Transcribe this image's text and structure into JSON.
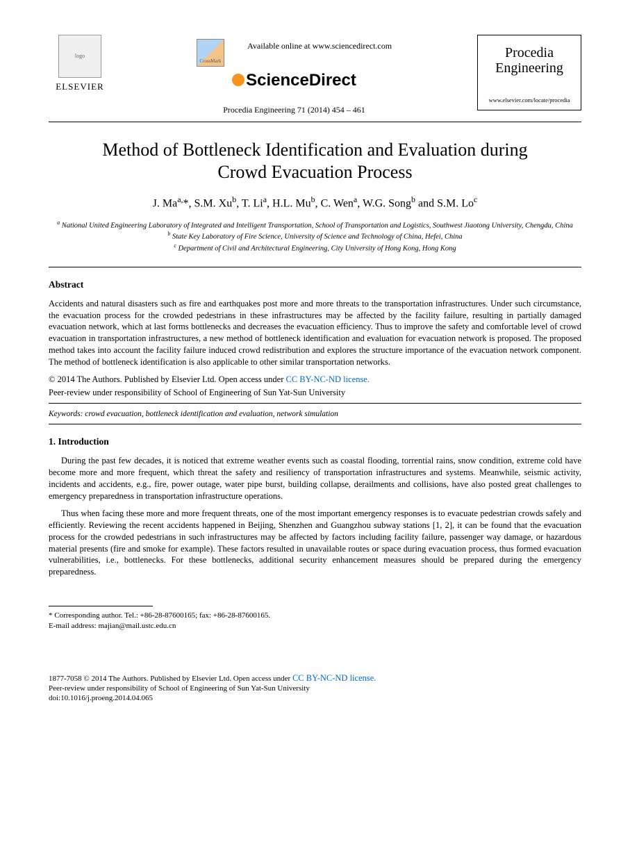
{
  "header": {
    "publisher_label": "ELSEVIER",
    "crossmark_label": "CrossMark",
    "available_line": "Available online at www.sciencedirect.com",
    "sd_brand": "ScienceDirect",
    "journal_ref": "Procedia Engineering 71 (2014) 454 – 461",
    "journal_box_title": "Procedia Engineering",
    "journal_box_url": "www.elsevier.com/locate/procedia"
  },
  "title": "Method of Bottleneck Identification and Evaluation during Crowd Evacuation Process",
  "authors_html": "J. Ma<sup>a,</sup>*, S.M. Xu<sup>b</sup>, T. Li<sup>a</sup>, H.L. Mu<sup>b</sup>, C. Wen<sup>a</sup>, W.G. Song<sup>b</sup> and S.M. Lo<sup>c</sup>",
  "affiliations": {
    "a": "National United Engineering Laboratory of Integrated and Intelligent Transportation, School of Transportation and Logistics, Southwest Jiaotong University, Chengdu, China",
    "b": "State Key Laboratory of Fire Science, University of Science and Technology of China, Hefei, China",
    "c": "Department of Civil and Architectural Engineering, City University of Hong Kong, Hong Kong"
  },
  "abstract": {
    "heading": "Abstract",
    "text": "Accidents and natural disasters such as fire and earthquakes post more and more threats to the transportation infrastructures. Under such circumstance, the evacuation process for the crowded pedestrians in these infrastructures may be affected by the facility failure, resulting in partially damaged evacuation network, which at last forms bottlenecks and decreases the evacuation efficiency. Thus to improve the safety and comfortable level of crowd evacuation in transportation infrastructures, a new method of bottleneck identification and evaluation for evacuation network is proposed. The proposed method takes into account the facility failure induced crowd redistribution and explores the structure importance of the evacuation network component. The method of bottleneck identification is also applicable to other similar transportation networks."
  },
  "copyright": {
    "line": "© 2014 The Authors. Published by Elsevier Ltd. Open access under ",
    "license_text": "CC BY-NC-ND license.",
    "peer_review": "Peer-review under responsibility of School of Engineering of Sun Yat-Sun University"
  },
  "keywords": "Keywords: crowd evacuation, bottleneck identification and evaluation, network simulation",
  "intro": {
    "heading": "1. Introduction",
    "p1": "During the past few decades, it is noticed that extreme weather events such as coastal flooding, torrential rains, snow condition, extreme cold have become more and more frequent, which threat the safety and resiliency of transportation infrastructures and systems. Meanwhile, seismic activity, incidents and accidents, e.g., fire, power outage, water pipe burst, building collapse, derailments and collisions, have also posted great challenges to emergency preparedness in transportation infrastructure operations.",
    "p2": "Thus when facing these more and more frequent threats, one of the most important emergency responses is to evacuate pedestrian crowds safely and efficiently. Reviewing the recent accidents happened in Beijing, Shenzhen and Guangzhou subway stations [1, 2], it can be found that the evacuation process for the crowded pedestrians in such infrastructures may be affected by factors including facility failure, passenger way damage, or hazardous material presents (fire and smoke for example). These factors resulted in unavailable routes or space during evacuation process, thus formed evacuation vulnerabilities, i.e., bottlenecks. For these bottlenecks, additional security enhancement measures should be prepared during the emergency preparedness."
  },
  "footnote": {
    "corr": "* Corresponding author. Tel.: +86-28-87600165; fax: +86-28-87600165.",
    "email_label": "E-mail address: ",
    "email": "majian@mail.ustc.edu.cn"
  },
  "footer": {
    "issn_line": "1877-7058 © 2014 The Authors. Published by Elsevier Ltd. Open access under ",
    "license_text": "CC BY-NC-ND license.",
    "peer_review": "Peer-review under responsibility of School of Engineering of Sun Yat-Sun University",
    "doi": "doi:10.1016/j.proeng.2014.04.065"
  }
}
